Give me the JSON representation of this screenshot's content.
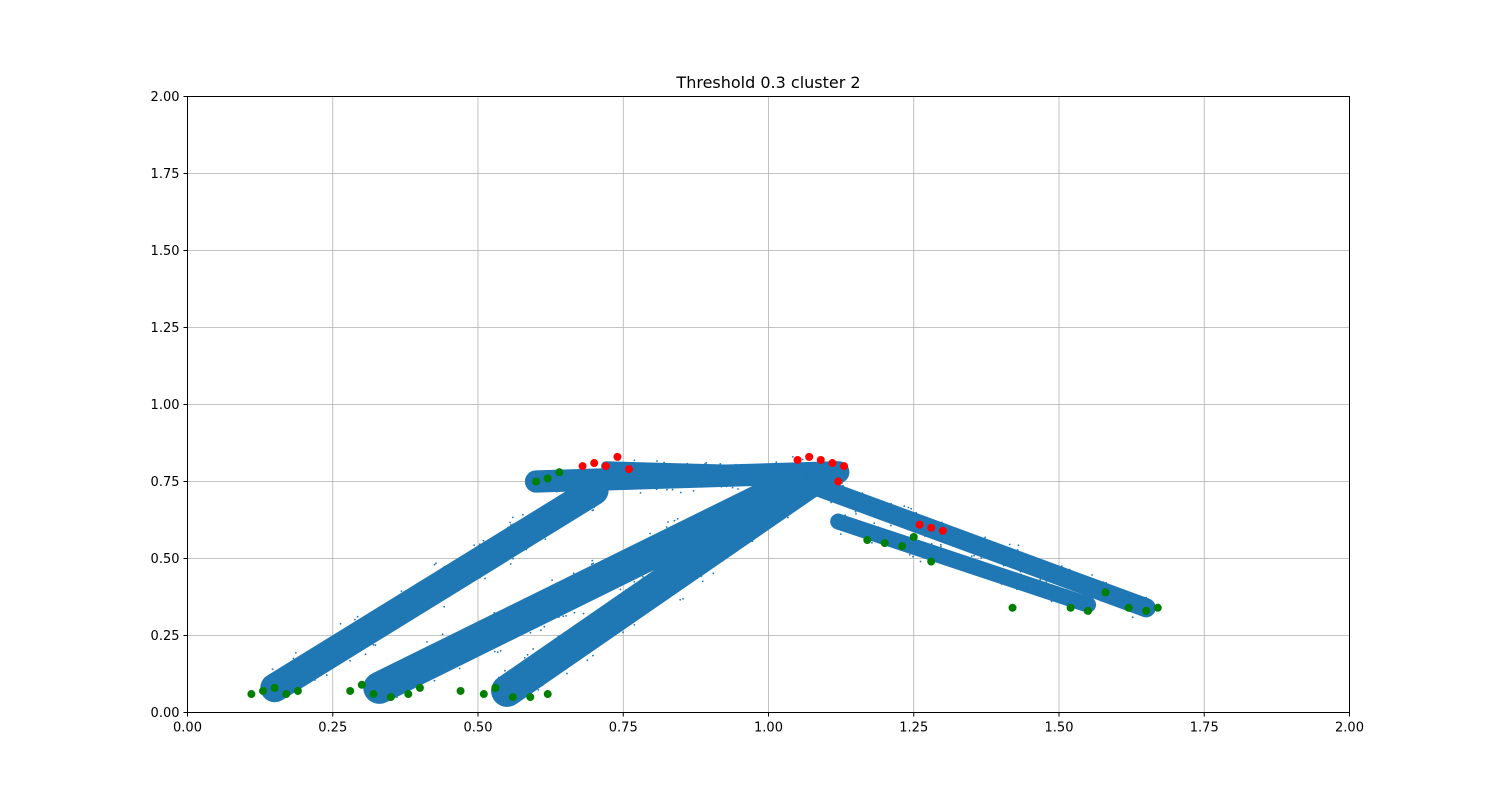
{
  "chart_data": {
    "type": "scatter",
    "title": "Threshold 0.3 cluster 2",
    "xlabel": "",
    "ylabel": "",
    "xlim": [
      0,
      2
    ],
    "ylim": [
      0,
      2
    ],
    "grid": true,
    "xticks": [
      "0.00",
      "0.25",
      "0.50",
      "0.75",
      "1.00",
      "1.25",
      "1.50",
      "1.75",
      "2.00"
    ],
    "yticks": [
      "0.00",
      "0.25",
      "0.50",
      "0.75",
      "1.00",
      "1.25",
      "1.50",
      "1.75",
      "2.00"
    ],
    "series": [
      {
        "role": "trajectory-bands",
        "color": "#1f77b4",
        "marker": "small-dot",
        "bands": [
          {
            "from": [
              0.15,
              0.08
            ],
            "to": [
              0.7,
              0.72
            ],
            "width": 0.045
          },
          {
            "from": [
              0.33,
              0.08
            ],
            "to": [
              1.05,
              0.75
            ],
            "width": 0.05
          },
          {
            "from": [
              0.55,
              0.07
            ],
            "to": [
              1.08,
              0.76
            ],
            "width": 0.05
          },
          {
            "from": [
              0.6,
              0.75
            ],
            "to": [
              1.12,
              0.78
            ],
            "width": 0.035
          },
          {
            "from": [
              1.06,
              0.75
            ],
            "to": [
              1.65,
              0.34
            ],
            "width": 0.03
          },
          {
            "from": [
              1.12,
              0.62
            ],
            "to": [
              1.55,
              0.35
            ],
            "width": 0.025
          },
          {
            "from": [
              0.72,
              0.8
            ],
            "to": [
              1.12,
              0.78
            ],
            "width": 0.015
          }
        ]
      },
      {
        "role": "green-markers",
        "color": "#008000",
        "marker": "circle",
        "x": [
          0.11,
          0.13,
          0.15,
          0.17,
          0.19,
          0.28,
          0.3,
          0.32,
          0.35,
          0.38,
          0.4,
          0.47,
          0.51,
          0.53,
          0.56,
          0.59,
          0.62,
          0.6,
          0.62,
          0.64,
          1.17,
          1.2,
          1.23,
          1.25,
          1.28,
          1.42,
          1.52,
          1.55,
          1.58,
          1.62,
          1.65,
          1.67
        ],
        "y": [
          0.06,
          0.07,
          0.08,
          0.06,
          0.07,
          0.07,
          0.09,
          0.06,
          0.05,
          0.06,
          0.08,
          0.07,
          0.06,
          0.08,
          0.05,
          0.05,
          0.06,
          0.75,
          0.76,
          0.78,
          0.56,
          0.55,
          0.54,
          0.57,
          0.49,
          0.34,
          0.34,
          0.33,
          0.39,
          0.34,
          0.33,
          0.34
        ]
      },
      {
        "role": "red-markers",
        "color": "#ff0000",
        "marker": "circle",
        "x": [
          0.68,
          0.7,
          0.72,
          0.74,
          0.76,
          1.05,
          1.07,
          1.09,
          1.11,
          1.13,
          1.12,
          1.26,
          1.28,
          1.3
        ],
        "y": [
          0.8,
          0.81,
          0.8,
          0.83,
          0.79,
          0.82,
          0.83,
          0.82,
          0.81,
          0.8,
          0.75,
          0.61,
          0.6,
          0.59
        ]
      }
    ]
  }
}
